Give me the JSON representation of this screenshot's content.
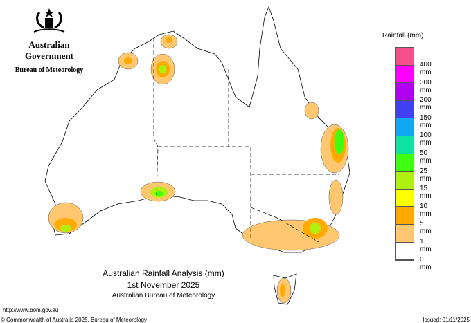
{
  "logo": {
    "government": "Australian Government",
    "bureau": "Bureau of Meteorology"
  },
  "legend": {
    "title": "Rainfall (mm)",
    "colors": [
      "#f5508a",
      "#ff00ff",
      "#b000f0",
      "#4040f0",
      "#10a8f0",
      "#10e0a0",
      "#40ff10",
      "#b0f010",
      "#ffff00",
      "#ffaa00",
      "#ffc870",
      "#ffffff"
    ],
    "labels": [
      "400 mm",
      "300 mm",
      "200 mm",
      "150 mm",
      "100 mm",
      "50 mm",
      "25 mm",
      "15 mm",
      "10 mm",
      "5 mm",
      "1 mm",
      "0 mm"
    ]
  },
  "title": {
    "line1": "Australian Rainfall Analysis (mm)",
    "line2": "1st November 2025",
    "line3": "Australian Bureau of Meteorology"
  },
  "footer": {
    "url": "http://www.bom.gov.au",
    "copyright": "© Commonwealth of Australia 2025, Bureau of Meteorology",
    "issued": "Issued: 01/11/2025"
  }
}
